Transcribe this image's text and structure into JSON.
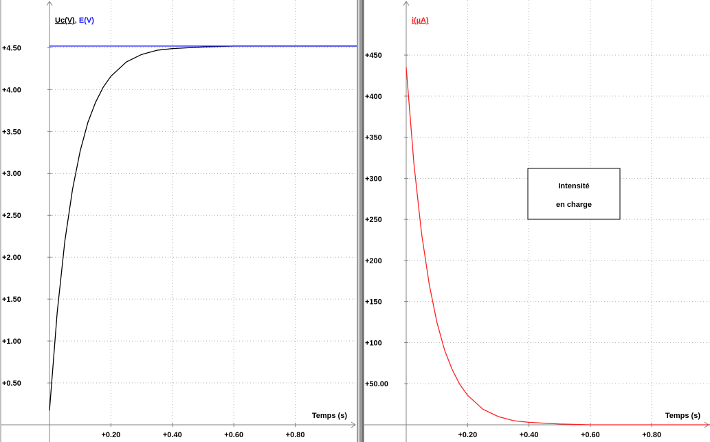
{
  "chart_data": [
    {
      "type": "line",
      "legend_separator": ", ",
      "xlabel": "Temps (s)",
      "x": [
        0,
        0.025,
        0.05,
        0.075,
        0.1,
        0.125,
        0.15,
        0.175,
        0.2,
        0.25,
        0.3,
        0.35,
        0.4,
        0.45,
        0.5,
        0.6,
        0.7,
        0.8,
        0.9,
        1.0
      ],
      "series": [
        {
          "name": "Uc(V)",
          "color": "#000000",
          "values": [
            0.17,
            1.34,
            2.19,
            2.81,
            3.27,
            3.61,
            3.85,
            4.03,
            4.16,
            4.33,
            4.42,
            4.47,
            4.49,
            4.5,
            4.51,
            4.52,
            4.52,
            4.52,
            4.52,
            4.52
          ]
        },
        {
          "name": "E(V)",
          "color": "#1a1aff",
          "values": [
            4.52,
            4.52,
            4.52,
            4.52,
            4.52,
            4.52,
            4.52,
            4.52,
            4.52,
            4.52,
            4.52,
            4.52,
            4.52,
            4.52,
            4.52,
            4.52,
            4.52,
            4.52,
            4.52,
            4.52
          ]
        }
      ],
      "xlim": [
        0,
        1.0
      ],
      "ylim": [
        0,
        5.07
      ],
      "xticks": [
        {
          "value": 0.2,
          "label": "+0.20"
        },
        {
          "value": 0.4,
          "label": "+0.40"
        },
        {
          "value": 0.6,
          "label": "+0.60"
        },
        {
          "value": 0.8,
          "label": "+0.80"
        }
      ],
      "yticks": [
        {
          "value": 0.5,
          "label": "+0.50"
        },
        {
          "value": 1.0,
          "label": "+1.00"
        },
        {
          "value": 1.5,
          "label": "+1.50"
        },
        {
          "value": 2.0,
          "label": "+2.00"
        },
        {
          "value": 2.5,
          "label": "+2.50"
        },
        {
          "value": 3.0,
          "label": "+3.00"
        },
        {
          "value": 3.5,
          "label": "+3.50"
        },
        {
          "value": 4.0,
          "label": "+4.00"
        },
        {
          "value": 4.5,
          "label": "+4.50"
        }
      ],
      "grid": true
    },
    {
      "type": "line",
      "xlabel": "Temps (s)",
      "annotation": [
        "Intensité",
        "en charge"
      ],
      "x": [
        0,
        0.025,
        0.05,
        0.075,
        0.1,
        0.125,
        0.15,
        0.175,
        0.2,
        0.25,
        0.3,
        0.35,
        0.4,
        0.45,
        0.5,
        0.6,
        0.7,
        0.8,
        0.9,
        0.99
      ],
      "series": [
        {
          "name": "i(µA)",
          "color": "#ff2020",
          "values": [
            435,
            318,
            233,
            171,
            125,
            91,
            67,
            49,
            36,
            19,
            10,
            5,
            3,
            2,
            1,
            0,
            0,
            0,
            0,
            0
          ]
        }
      ],
      "xlim": [
        0,
        0.99
      ],
      "ylim": [
        0,
        517
      ],
      "xticks": [
        {
          "value": 0.2,
          "label": "+0.20"
        },
        {
          "value": 0.4,
          "label": "+0.40"
        },
        {
          "value": 0.6,
          "label": "+0.60"
        },
        {
          "value": 0.8,
          "label": "+0.80"
        }
      ],
      "yticks": [
        {
          "value": 50,
          "label": "+50.00"
        },
        {
          "value": 100,
          "label": "+100"
        },
        {
          "value": 150,
          "label": "+150"
        },
        {
          "value": 200,
          "label": "+200"
        },
        {
          "value": 250,
          "label": "+250"
        },
        {
          "value": 300,
          "label": "+300"
        },
        {
          "value": 350,
          "label": "+350"
        },
        {
          "value": 400,
          "label": "+400"
        },
        {
          "value": 450,
          "label": "+450"
        }
      ],
      "grid": true
    }
  ]
}
